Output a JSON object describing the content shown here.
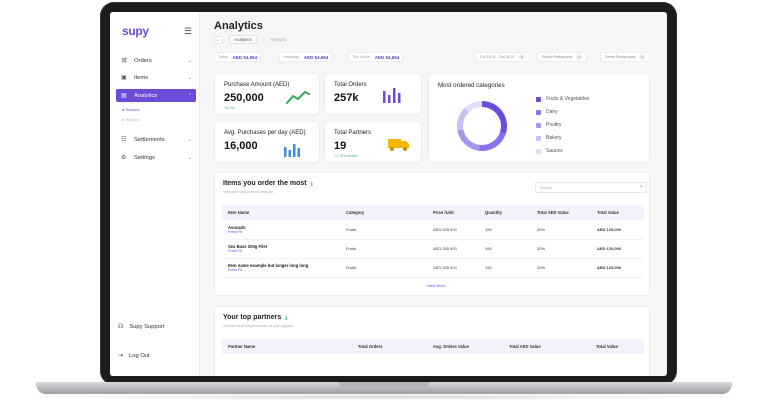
{
  "sidebar": {
    "logo": "supy",
    "nav": [
      {
        "label": "Orders",
        "icon": "cart-icon"
      },
      {
        "label": "Items",
        "icon": "box-icon"
      },
      {
        "label": "Analytics",
        "icon": "chart-icon"
      },
      {
        "label": "Settlements",
        "icon": "settlement-icon"
      },
      {
        "label": "Settings",
        "icon": "gear-icon"
      }
    ],
    "sub_items": [
      "Reports",
      "Widgets"
    ],
    "support": "Supy Support",
    "logout": "Log Out"
  },
  "header": {
    "title": "Analytics",
    "breadcrumb": [
      "Analytics",
      "Reports"
    ]
  },
  "chips": [
    {
      "label": "Today",
      "value": "AED 54,654"
    },
    {
      "label": "Yesterday",
      "value": "AED 54,654"
    },
    {
      "label": "This Month",
      "value": "AED 54,654"
    }
  ],
  "filters": [
    "Oct 19-21 - Oct 26-21",
    "Select Restaurants",
    "Select Restaurants"
  ],
  "cards": {
    "purchase_amount": {
      "label": "Purchase Amount (AED)",
      "value": "250,000",
      "trend": "+6.2%"
    },
    "total_orders": {
      "label": "Total Orders",
      "value": "257k"
    },
    "avg_purchases": {
      "label": "Avg. Purchases per day (AED)",
      "value": "16,000"
    },
    "total_partners": {
      "label": "Total Partners",
      "value": "19",
      "trend": "+1.75% month"
    }
  },
  "categories": {
    "title": "Most ordered categories",
    "items": [
      {
        "label": "Fruits & Vegetables",
        "color": "#6c4bd8"
      },
      {
        "label": "Dairy",
        "color": "#8a6ff0"
      },
      {
        "label": "Poultry",
        "color": "#a895ee"
      },
      {
        "label": "Bakery",
        "color": "#c9bff3"
      },
      {
        "label": "Sauces",
        "color": "#e3def8"
      }
    ],
    "shares": [
      0.3,
      0.22,
      0.2,
      0.16,
      0.12
    ]
  },
  "items_section": {
    "title": "Items you order the most",
    "subtitle": "View your most ordered items list",
    "search_placeholder": "Search",
    "columns": [
      "Item Name",
      "Category",
      "Price /Unit",
      "Quantity",
      "Total AED Value",
      "Total Value"
    ],
    "rows": [
      {
        "name": "Avocado",
        "supplier": "Fresh Fit",
        "category": "Fruits",
        "price": "AED 245 /KG",
        "qty": "190",
        "total_aed": "20%",
        "total": "AED 125,000"
      },
      {
        "name": "Sea Bass 200g Filet",
        "supplier": "Fresh Fit",
        "category": "Fruits",
        "price": "AED 245 /KG",
        "qty": "190",
        "total_aed": "20%",
        "total": "AED 125,000"
      },
      {
        "name": "Item name example but longer long long",
        "supplier": "Fresh Fit",
        "category": "Fruits",
        "price": "AED 245 /KG",
        "qty": "190",
        "total_aed": "20%",
        "total": "AED 125,000"
      }
    ],
    "view_more": "View More"
  },
  "partners_section": {
    "title": "Your top partners",
    "subtitle": "View the most frequent sellers of your supplies",
    "columns": [
      "Partner Name",
      "Total Orders",
      "Avg. Orders Value",
      "Total AED Value",
      "Total Value"
    ]
  }
}
